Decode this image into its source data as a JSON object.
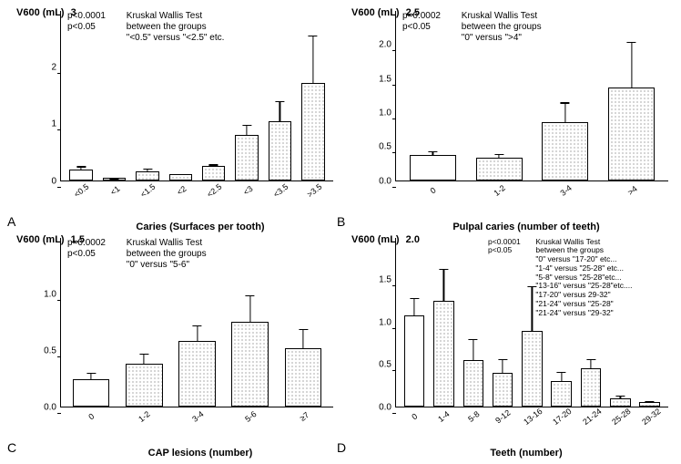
{
  "global": {
    "ylabel_text": "V600 (mL)",
    "bar_border": "#000000",
    "bg": "#ffffff",
    "dot_color": "#6b6b6b",
    "font": "Arial"
  },
  "panels": {
    "A": {
      "letter": "A",
      "xtitle": "Caries (Surfaces per tooth)",
      "ymax_label": "3",
      "ymax": 3.0,
      "yticks": [
        0,
        1,
        2,
        3
      ],
      "annot_p1": "p<0.0001",
      "annot_p2": "p<0.05",
      "annot_r1": "Kruskal Wallis Test",
      "annot_r2": "between the groups",
      "annot_r3": "\"<0.5\" versus \"<2.5\" etc.",
      "cats": [
        "<0.5",
        "<1",
        "<1.5",
        "<2",
        "<2.5",
        "<3",
        "<3.5",
        ">3.5"
      ],
      "vals": [
        0.18,
        0.04,
        0.16,
        0.1,
        0.25,
        0.8,
        1.05,
        1.72
      ],
      "errs": [
        0.1,
        0.03,
        0.08,
        0.04,
        0.05,
        0.2,
        0.38,
        0.88
      ],
      "fills": [
        "plain",
        "dotted",
        "dotted",
        "dotted",
        "dotted",
        "dotted",
        "dotted",
        "dotted"
      ]
    },
    "B": {
      "letter": "B",
      "xtitle": "Pulpal caries (number of teeth)",
      "ymax_label": "2.5",
      "ymax": 2.5,
      "yticks": [
        0.0,
        0.5,
        1.0,
        1.5,
        2.0,
        2.5
      ],
      "annot_p1": "p=0.0002",
      "annot_p2": "p<0.05",
      "annot_r1": "Kruskal Wallis Test",
      "annot_r2": "between the groups",
      "annot_r3": "\"0\" versus \">4\"",
      "cats": [
        "0",
        "1-2",
        "3-4",
        ">4"
      ],
      "vals": [
        0.37,
        0.33,
        0.85,
        1.37
      ],
      "errs": [
        0.07,
        0.07,
        0.32,
        0.7
      ],
      "fills": [
        "plain",
        "dotted",
        "dotted",
        "dotted"
      ]
    },
    "C": {
      "letter": "C",
      "xtitle": "CAP lesions (number)",
      "ymax_label": "1.5",
      "ymax": 1.5,
      "yticks": [
        0.0,
        0.5,
        1.0,
        1.5
      ],
      "annot_p1": "p=0.0002",
      "annot_p2": "p<0.05",
      "annot_r1": "Kruskal Wallis Test",
      "annot_r2": "between the groups",
      "annot_r3": "\"0\" versus \"5-6\"",
      "cats": [
        "0",
        "1-2",
        "3-4",
        "5-6",
        "≥7"
      ],
      "vals": [
        0.24,
        0.38,
        0.58,
        0.75,
        0.52
      ],
      "errs": [
        0.07,
        0.1,
        0.15,
        0.25,
        0.18
      ],
      "fills": [
        "plain",
        "dotted",
        "dotted",
        "dotted",
        "dotted"
      ]
    },
    "D": {
      "letter": "D",
      "xtitle": "Teeth (number)",
      "ymax_label": "2.0",
      "ymax": 2.0,
      "yticks": [
        0.0,
        0.5,
        1.0,
        1.5,
        2.0
      ],
      "annot_p1": "p<0.0001",
      "annot_p2": "p<0.05",
      "annot_r1": "Kruskal Wallis Test",
      "annot_r2": "between the groups",
      "annot_lines": [
        "\"0\" versus \"17-20\" etc...",
        "\"1-4\" versus \"25-28\" etc...",
        "\"5-8\" versus \"25-28\"etc...",
        "\"13-16\" versus \"25-28\"etc....",
        "\"17-20\" versus 29-32\"",
        "\"21-24\" versus \"25-28\"",
        "\"21-24\" versus \"29-32\""
      ],
      "cats": [
        "0",
        "1-4",
        "5-8",
        "9-12",
        "13-16",
        "17-20",
        "21-24",
        "25-28",
        "29-32"
      ],
      "vals": [
        1.08,
        1.25,
        0.55,
        0.4,
        0.9,
        0.3,
        0.45,
        0.1,
        0.05
      ],
      "errs": [
        0.22,
        0.4,
        0.27,
        0.18,
        0.55,
        0.13,
        0.13,
        0.05,
        0.04
      ],
      "fills": [
        "plain",
        "dotted",
        "dotted",
        "dotted",
        "dotted",
        "dotted",
        "dotted",
        "dotted",
        "dotted"
      ]
    }
  }
}
